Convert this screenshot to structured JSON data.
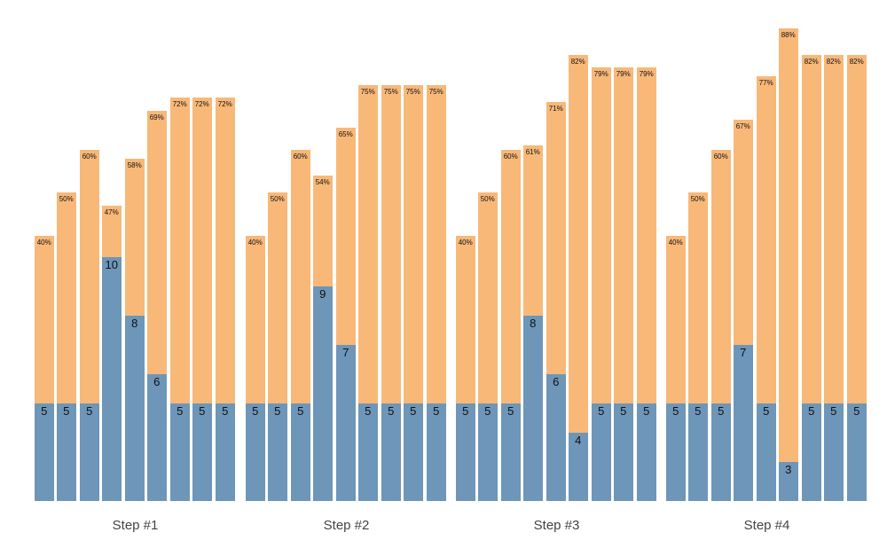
{
  "chart_data": {
    "type": "bar",
    "subtype": "stacked-vertical-grouped",
    "title": "",
    "xlabel": "",
    "ylabel": "",
    "axes": "none",
    "grid": false,
    "legend_position": "none",
    "series_meta": [
      {
        "name": "blue-bottom-segment",
        "color": "#6D96B9",
        "value_label_position": "inside-top-of-blue"
      },
      {
        "name": "orange-top-segment",
        "color": "#F8B878",
        "value_label_position": "inside-top-of-bar"
      }
    ],
    "groups": [
      {
        "label": "Step #1",
        "blue_values": [
          5,
          5,
          5,
          10,
          8,
          6,
          5,
          5,
          5
        ],
        "pct_labels": [
          "40%",
          "50%",
          "60%",
          "47%",
          "58%",
          "69%",
          "72%",
          "72%",
          "72%"
        ]
      },
      {
        "label": "Step #2",
        "blue_values": [
          5,
          5,
          5,
          9,
          7,
          5,
          5,
          5,
          5
        ],
        "pct_labels": [
          "40%",
          "50%",
          "60%",
          "54%",
          "65%",
          "75%",
          "75%",
          "75%",
          "75%"
        ]
      },
      {
        "label": "Step #3",
        "blue_values": [
          5,
          5,
          5,
          8,
          6,
          4,
          5,
          5,
          5
        ],
        "pct_labels": [
          "40%",
          "50%",
          "60%",
          "61%",
          "71%",
          "82%",
          "79%",
          "79%",
          "79%"
        ]
      },
      {
        "label": "Step #4",
        "blue_values": [
          5,
          5,
          5,
          7,
          5,
          3,
          5,
          5,
          5
        ],
        "pct_labels": [
          "40%",
          "50%",
          "60%",
          "67%",
          "77%",
          "88%",
          "82%",
          "82%",
          "82%"
        ]
      }
    ],
    "colors": {
      "blue_segment": "#6D96B9",
      "orange_segment": "#F8B878",
      "bar_label_text": "#111111",
      "step_label_text": "#444444",
      "background": "#FFFFFF"
    }
  }
}
